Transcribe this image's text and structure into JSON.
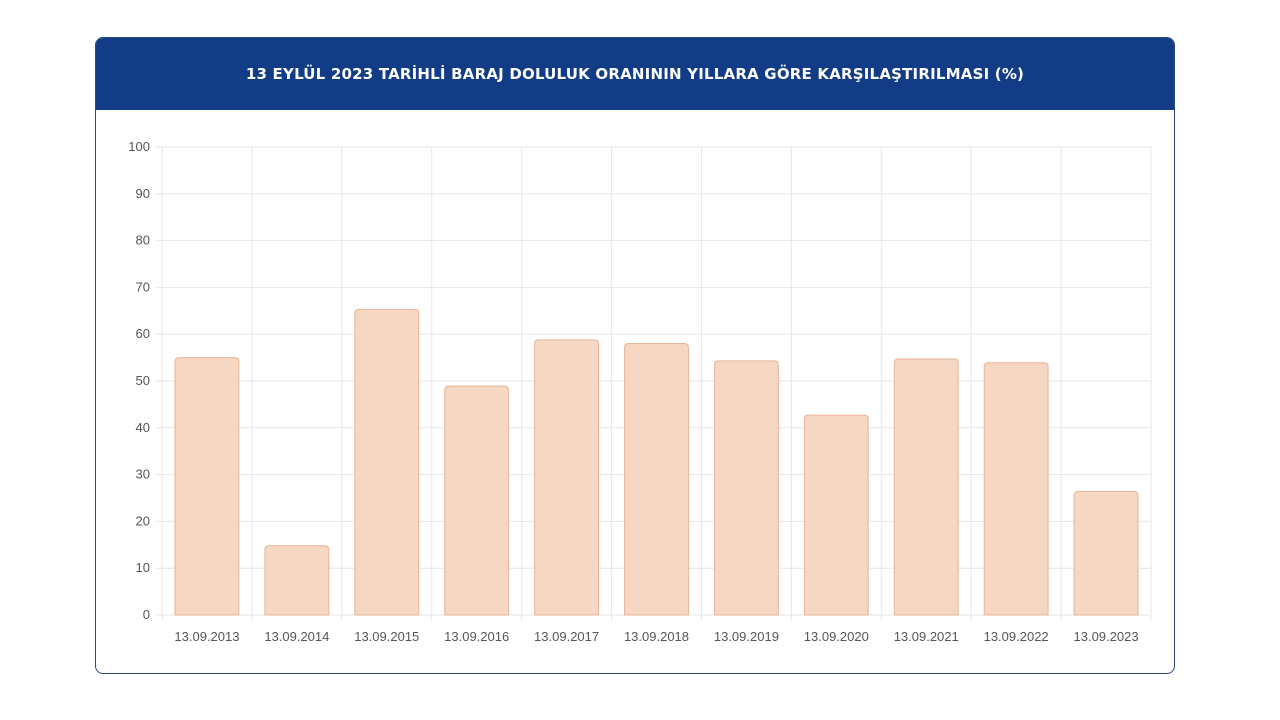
{
  "header": {
    "title": "13 EYLÜL 2023 TARİHLİ BARAJ DOLULUK ORANININ YILLARA GÖRE KARŞILAŞTIRILMASI (%)"
  },
  "chart_data": {
    "type": "bar",
    "categories": [
      "13.09.2013",
      "13.09.2014",
      "13.09.2015",
      "13.09.2016",
      "13.09.2017",
      "13.09.2018",
      "13.09.2019",
      "13.09.2020",
      "13.09.2021",
      "13.09.2022",
      "13.09.2023"
    ],
    "values": [
      55,
      14.8,
      65.3,
      48.9,
      58.8,
      58,
      54.3,
      42.7,
      54.7,
      53.9,
      26.4
    ],
    "title": "13 EYLÜL 2023 TARİHLİ BARAJ DOLULUK ORANININ YILLARA GÖRE KARŞILAŞTIRILMASI (%)",
    "xlabel": "",
    "ylabel": "",
    "ylim": [
      0,
      100
    ],
    "yticks": [
      "0",
      "10",
      "20",
      "30",
      "40",
      "50",
      "60",
      "70",
      "80",
      "90",
      "100"
    ],
    "grid": true,
    "legend": "none",
    "colors": {
      "bar_fill": "#f5d7c3",
      "bar_stroke": "#e6b596",
      "header_bg": "#123c85",
      "grid": "#e6e6e6"
    }
  }
}
